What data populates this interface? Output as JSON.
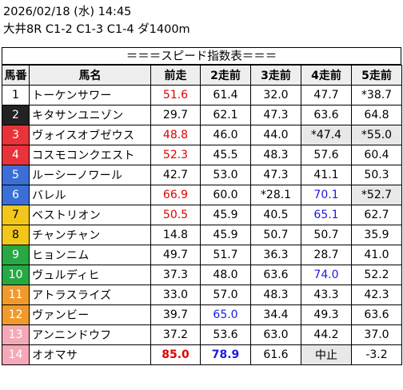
{
  "header": {
    "line1": "2026/02/18 (水) 14:45",
    "line2": "大井8R C1-2 C1-3 C1-4 ダ1400m"
  },
  "title": "＝＝＝スピード指数表＝＝＝",
  "columns": [
    "馬番",
    "馬名",
    "前走",
    "2走前",
    "3走前",
    "4走前",
    "5走前"
  ],
  "post_colors": {
    "1": "#ffffff",
    "2": "#222222",
    "3": "#e8333a",
    "4": "#e8333a",
    "5": "#3b6fd6",
    "6": "#3b6fd6",
    "7": "#f2c71b",
    "8": "#f2c71b",
    "9": "#27a844",
    "10": "#27a844",
    "11": "#f19a2b",
    "12": "#f19a2b",
    "13": "#f5a9b8",
    "14": "#f5a9b8"
  },
  "rows": [
    {
      "no": "1",
      "name": "トーケンサワー",
      "v": [
        "51.6",
        "61.4",
        "32.0",
        "47.7",
        "*38.7"
      ]
    },
    {
      "no": "2",
      "name": "キタサンユニゾン",
      "v": [
        "29.7",
        "62.1",
        "47.3",
        "63.6",
        "64.8"
      ]
    },
    {
      "no": "3",
      "name": "ヴォイスオブゼウス",
      "v": [
        "48.8",
        "46.0",
        "44.0",
        "*47.4",
        "*55.0"
      ]
    },
    {
      "no": "4",
      "name": "コスモコンクエスト",
      "v": [
        "52.3",
        "45.5",
        "48.3",
        "57.6",
        "60.4"
      ]
    },
    {
      "no": "5",
      "name": "ルーシーノワール",
      "v": [
        "42.7",
        "53.0",
        "47.3",
        "41.1",
        "50.3"
      ]
    },
    {
      "no": "6",
      "name": "バレル",
      "v": [
        "66.9",
        "60.0",
        "*28.1",
        "70.1",
        "*52.7"
      ]
    },
    {
      "no": "7",
      "name": "ベストリオン",
      "v": [
        "50.5",
        "45.9",
        "40.5",
        "65.1",
        "62.7"
      ]
    },
    {
      "no": "8",
      "name": "チャンチャン",
      "v": [
        "14.8",
        "45.9",
        "50.7",
        "50.7",
        "35.9"
      ]
    },
    {
      "no": "9",
      "name": "ヒョンニム",
      "v": [
        "49.7",
        "51.7",
        "36.3",
        "28.7",
        "41.0"
      ]
    },
    {
      "no": "10",
      "name": "ヴュルディヒ",
      "v": [
        "37.3",
        "48.0",
        "63.6",
        "74.0",
        "52.2"
      ]
    },
    {
      "no": "11",
      "name": "アトラスライズ",
      "v": [
        "33.0",
        "57.0",
        "48.3",
        "43.3",
        "42.3"
      ]
    },
    {
      "no": "12",
      "name": "ヴァンビー",
      "v": [
        "39.7",
        "65.0",
        "34.4",
        "49.3",
        "63.6"
      ]
    },
    {
      "no": "13",
      "name": "アンニンドウフ",
      "v": [
        "37.2",
        "53.6",
        "63.0",
        "44.2",
        "37.0"
      ]
    },
    {
      "no": "14",
      "name": "オオマサ",
      "v": [
        "85.0",
        "78.9",
        "61.6",
        "中止",
        "-3.2"
      ]
    }
  ],
  "highlights": {
    "red": [
      "1-0",
      "3-0",
      "4-0",
      "6-0",
      "7-0",
      "14-0"
    ],
    "blue": [
      "6-3",
      "7-3",
      "10-3",
      "12-1",
      "14-1"
    ],
    "bold": [
      "14-0",
      "14-1"
    ],
    "gray": [
      "3-3",
      "3-4",
      "6-4",
      "14-3"
    ]
  }
}
